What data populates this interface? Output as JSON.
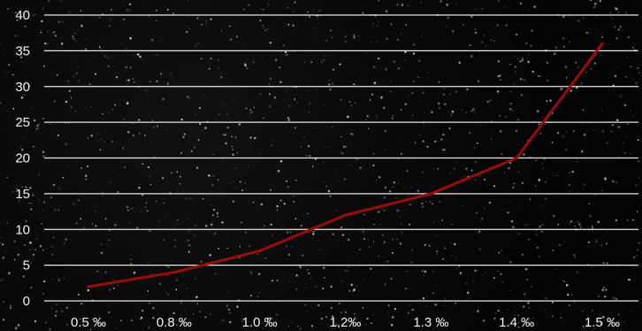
{
  "chart_data": {
    "type": "line",
    "title": "",
    "xlabel": "",
    "ylabel": "",
    "categories": [
      "0.5 ‰",
      "0.8 ‰",
      "1.0 ‰",
      "1.2‰",
      "1.3 ‰",
      "1.4 ‰",
      "1.5 ‰"
    ],
    "series": [
      {
        "values": [
          2,
          4,
          7,
          12,
          15,
          20,
          36
        ]
      }
    ],
    "ylim": [
      0,
      40
    ],
    "yticks": [
      0,
      5,
      10,
      15,
      20,
      25,
      30,
      35,
      40
    ],
    "grid": true,
    "legend": "none",
    "colors": {
      "line": "#9b0d0d",
      "grid": "#e6e6e6",
      "text": "#f2f2f2",
      "background": "#050505"
    }
  }
}
